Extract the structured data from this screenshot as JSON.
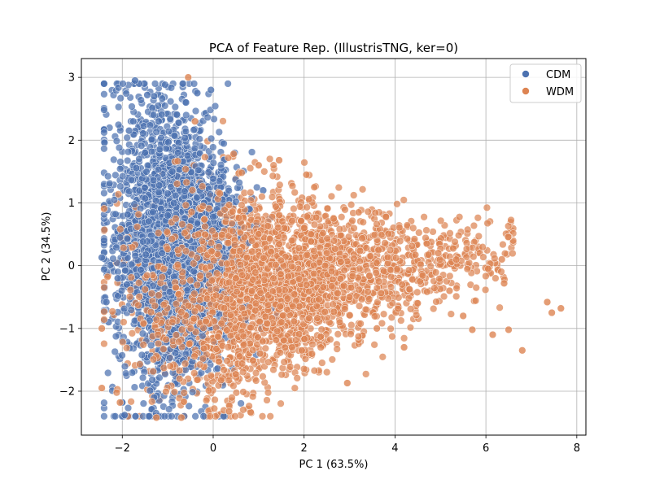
{
  "chart_data": {
    "type": "scatter",
    "title": "PCA of Feature Rep. (IllustrisTNG, ker=0)",
    "xlabel": "PC 1 (63.5%)",
    "ylabel": "PC 2 (34.5%)",
    "xlim": [
      -2.9,
      8.2
    ],
    "ylim": [
      -2.7,
      3.3
    ],
    "xticks": [
      -2,
      0,
      2,
      4,
      6,
      8
    ],
    "yticks": [
      -2,
      -1,
      0,
      1,
      2,
      3
    ],
    "xtick_labels": [
      "−2",
      "0",
      "2",
      "4",
      "6",
      "8"
    ],
    "ytick_labels": [
      "−2",
      "−1",
      "0",
      "1",
      "2",
      "3"
    ],
    "grid": true,
    "legend_position": "top-right",
    "series": [
      {
        "name": "CDM",
        "color": "#4c72b0",
        "approx_points": 3000,
        "distribution": "dense cloud centered near (-0.8, 0.3), spanning x -2.5..1.5 and y -2.4..3.0",
        "points": [
          [
            -2.45,
            0.13
          ],
          [
            -2.4,
            -0.72
          ],
          [
            -2.35,
            -0.58
          ],
          [
            -2.3,
            -0.9
          ],
          [
            -1.72,
            2.95
          ],
          [
            -1.45,
            2.72
          ],
          [
            -1.3,
            2.7
          ],
          [
            -0.6,
            2.6
          ],
          [
            -0.35,
            2.75
          ],
          [
            -0.05,
            2.8
          ],
          [
            -1.95,
            -2.38
          ],
          [
            -1.85,
            2.15
          ],
          [
            -1.9,
            -0.3
          ],
          [
            -2.05,
            0.45
          ],
          [
            -2.1,
            -0.2
          ],
          [
            -1.5,
            1.8
          ],
          [
            -1.2,
            2.3
          ],
          [
            -0.9,
            1.5
          ],
          [
            -0.5,
            0.2
          ],
          [
            -0.2,
            1.0
          ],
          [
            0.1,
            0.5
          ],
          [
            0.4,
            -0.3
          ],
          [
            0.8,
            0.9
          ],
          [
            1.1,
            1.2
          ],
          [
            1.4,
            -0.8
          ],
          [
            -1.6,
            -1.6
          ],
          [
            -1.3,
            -2.1
          ],
          [
            -0.8,
            -1.1
          ],
          [
            -1.0,
            0.8
          ],
          [
            -0.3,
            -0.6
          ]
        ]
      },
      {
        "name": "WDM",
        "color": "#dd8452",
        "approx_points": 3000,
        "distribution": "cloud centered near (1.3, -0.3) with a long tail toward large PC 1, spanning x -2.5..7.7 and y -2.4..3.0",
        "points": [
          [
            -2.45,
            -1.95
          ],
          [
            -2.45,
            -1.0
          ],
          [
            -0.55,
            3.0
          ],
          [
            -0.4,
            2.3
          ],
          [
            0.45,
            1.78
          ],
          [
            1.0,
            1.6
          ],
          [
            1.45,
            1.68
          ],
          [
            2.05,
            1.45
          ],
          [
            2.65,
            0.75
          ],
          [
            3.2,
            0.85
          ],
          [
            3.8,
            0.78
          ],
          [
            4.7,
            0.35
          ],
          [
            5.0,
            0.27
          ],
          [
            6.05,
            -0.05
          ],
          [
            6.15,
            -1.1
          ],
          [
            6.35,
            0.1
          ],
          [
            6.4,
            -0.28
          ],
          [
            6.5,
            -1.02
          ],
          [
            7.35,
            -0.58
          ],
          [
            7.45,
            -0.75
          ],
          [
            7.65,
            -0.68
          ],
          [
            6.8,
            -1.35
          ],
          [
            2.95,
            -1.87
          ],
          [
            1.95,
            -1.35
          ],
          [
            0.35,
            -2.32
          ],
          [
            -0.7,
            -2.42
          ],
          [
            -1.25,
            -2.42
          ],
          [
            -2.05,
            -2.18
          ],
          [
            3.6,
            -1.0
          ],
          [
            4.2,
            -1.3
          ],
          [
            5.5,
            -0.8
          ],
          [
            5.7,
            -1.02
          ],
          [
            4.95,
            0.2
          ],
          [
            2.5,
            0.2
          ],
          [
            1.5,
            -0.9
          ],
          [
            0.5,
            -0.2
          ],
          [
            3.0,
            -0.5
          ],
          [
            4.5,
            -0.6
          ],
          [
            5.2,
            -0.4
          ],
          [
            2.0,
            0.6
          ]
        ]
      }
    ]
  }
}
